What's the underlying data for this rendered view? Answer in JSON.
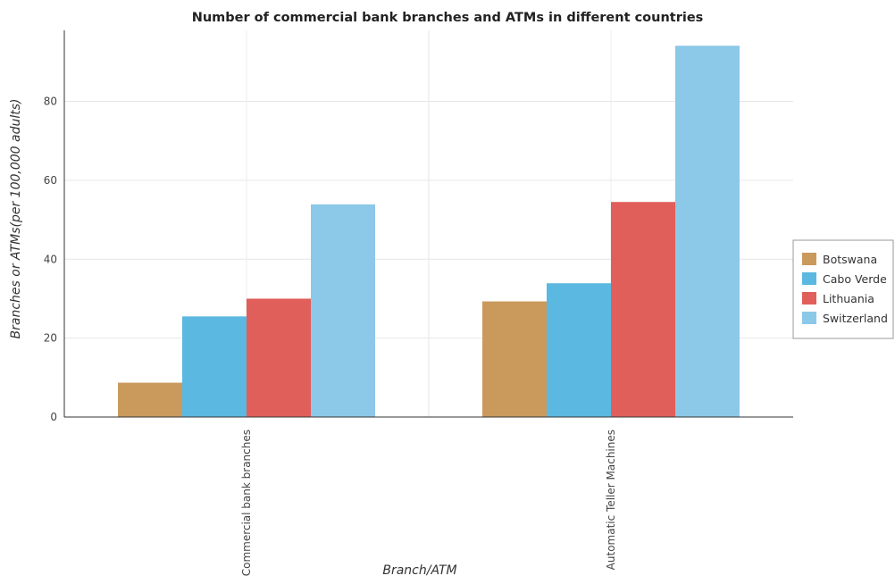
{
  "chart_data": {
    "type": "bar",
    "title": "Number of commercial bank branches and ATMs in different countries",
    "xlabel": "Branch/ATM",
    "ylabel": "Branches or ATMs(per 100,000 adults)",
    "categories": [
      "Commercial bank branches",
      "Automatic Teller Machines"
    ],
    "series": [
      {
        "name": "Botswana",
        "values": [
          8.7,
          29.3
        ],
        "color": "#c99a5c"
      },
      {
        "name": "Cabo Verde",
        "values": [
          25.5,
          33.9
        ],
        "color": "#5bb8e0"
      },
      {
        "name": "Lithuania",
        "values": [
          30.0,
          54.5
        ],
        "color": "#e05f5a"
      },
      {
        "name": "Switzerland",
        "values": [
          53.9,
          94.1
        ],
        "color": "#8cc8e8"
      }
    ],
    "ylim": [
      0,
      98
    ],
    "yticks": [
      0,
      20,
      40,
      60,
      80
    ],
    "grid": true,
    "legend_position": "right"
  }
}
